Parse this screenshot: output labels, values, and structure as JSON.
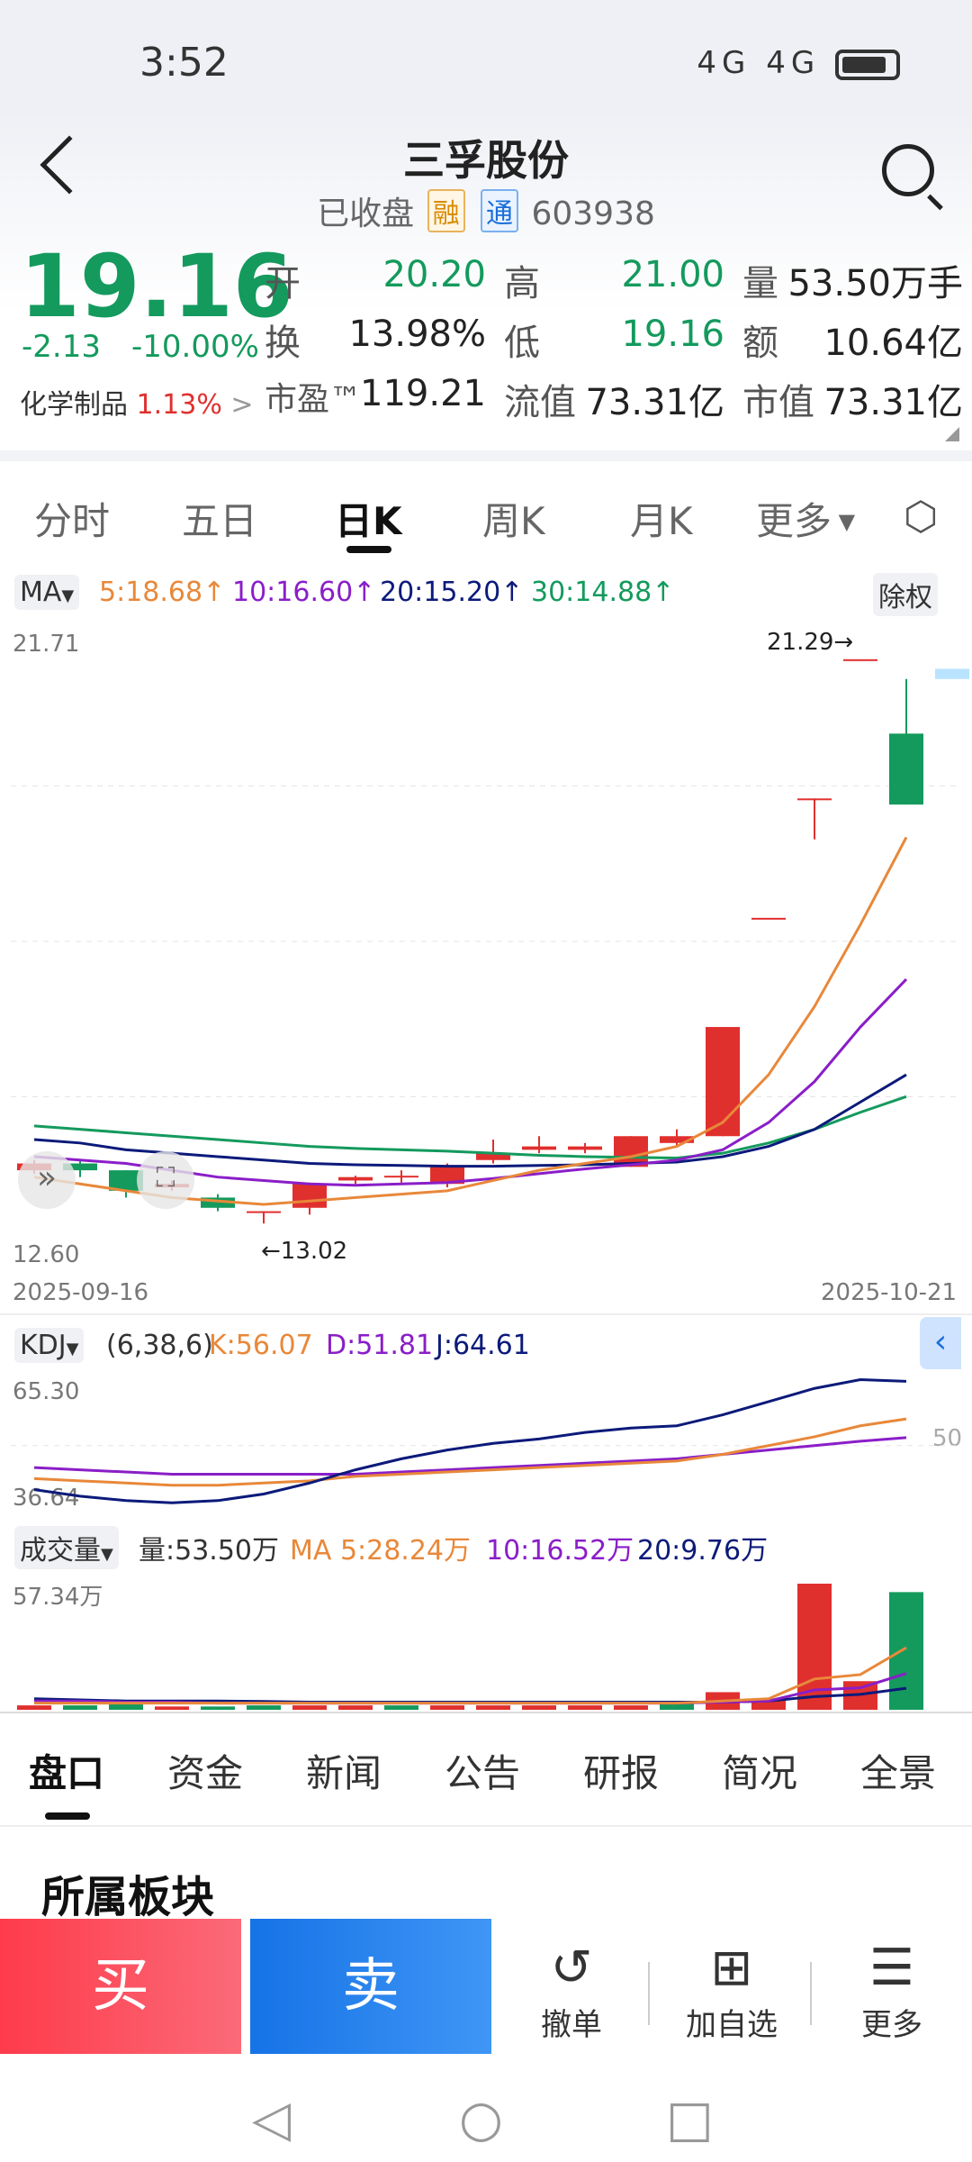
{
  "status": {
    "time": "3:52",
    "network": "4G 4G"
  },
  "header": {
    "name": "三孚股份",
    "state": "已收盘",
    "tag_rong": "融",
    "tag_tong": "通",
    "code": "603938"
  },
  "quote": {
    "price": "19.16",
    "change": "-2.13",
    "change_pct": "-10.00%",
    "sector_name": "化学制品",
    "sector_pct": "1.13%",
    "open_label": "开",
    "open": "20.20",
    "high_label": "高",
    "high": "21.00",
    "vol_label": "量",
    "vol": "53.50万手",
    "turnover_label": "换",
    "turnover": "13.98%",
    "low_label": "低",
    "low": "19.16",
    "amount_label": "额",
    "amount": "10.64亿",
    "pe_label": "市盈™",
    "pe": "119.21",
    "float_label": "流值",
    "float_cap": "73.31亿",
    "mcap_label": "市值",
    "mcap": "73.31亿"
  },
  "ktabs": [
    "分时",
    "五日",
    "日K",
    "周K",
    "月K",
    "更多"
  ],
  "ma": {
    "label": "MA",
    "ma5": "5:18.68↑",
    "ma10": "10:16.60↑",
    "ma20": "20:15.20↑",
    "ma30": "30:14.88↑",
    "adjust": "除权"
  },
  "chart_axis": {
    "y_top": "21.71",
    "y_bottom": "12.60",
    "max_note": "21.29→",
    "min_note": "←13.02",
    "date_start": "2025-09-16",
    "date_end": "2025-10-21"
  },
  "kdj": {
    "label": "KDJ",
    "params": "(6,38,6)",
    "k": "K:56.07",
    "d": "D:51.81",
    "j": "J:64.61",
    "y_top": "65.30",
    "y_bottom": "36.64",
    "mid": "50"
  },
  "volume": {
    "label": "成交量",
    "vol": "量:53.50万",
    "ma5": "MA 5:28.24万",
    "ma10": "10:16.52万",
    "ma20": "20:9.76万",
    "y_top": "57.34万"
  },
  "chart_data": {
    "type": "candlestick",
    "x_range": [
      "2025-09-16",
      "2025-10-21"
    ],
    "y_range": [
      12.6,
      21.71
    ],
    "candles": [
      {
        "o": 13.8,
        "c": 13.9,
        "h": 13.95,
        "l": 13.75
      },
      {
        "o": 13.9,
        "c": 13.8,
        "h": 13.95,
        "l": 13.7
      },
      {
        "o": 13.8,
        "c": 13.5,
        "h": 13.8,
        "l": 13.4
      },
      {
        "o": 13.55,
        "c": 13.6,
        "h": 13.65,
        "l": 13.5
      },
      {
        "o": 13.4,
        "c": 13.25,
        "h": 13.45,
        "l": 13.2
      },
      {
        "o": 13.2,
        "c": 13.2,
        "h": 13.2,
        "l": 13.02
      },
      {
        "o": 13.25,
        "c": 13.6,
        "h": 13.62,
        "l": 13.15
      },
      {
        "o": 13.65,
        "c": 13.7,
        "h": 13.72,
        "l": 13.6
      },
      {
        "o": 13.7,
        "c": 13.72,
        "h": 13.8,
        "l": 13.62
      },
      {
        "o": 13.6,
        "c": 13.85,
        "h": 13.9,
        "l": 13.55
      },
      {
        "o": 13.95,
        "c": 14.05,
        "h": 14.25,
        "l": 13.9
      },
      {
        "o": 14.1,
        "c": 14.15,
        "h": 14.3,
        "l": 14.05
      },
      {
        "o": 14.1,
        "c": 14.15,
        "h": 14.2,
        "l": 14.05
      },
      {
        "o": 13.85,
        "c": 14.3,
        "h": 14.3,
        "l": 13.85
      },
      {
        "o": 14.2,
        "c": 14.3,
        "h": 14.4,
        "l": 14.15
      },
      {
        "o": 14.3,
        "c": 15.9,
        "h": 15.9,
        "l": 14.3
      },
      {
        "o": 17.5,
        "c": 17.5,
        "h": 17.5,
        "l": 17.5
      },
      {
        "o": 19.25,
        "c": 19.25,
        "h": 19.25,
        "l": 18.65
      },
      {
        "o": 21.29,
        "c": 21.29,
        "h": 21.29,
        "l": 21.29
      },
      {
        "o": 20.2,
        "c": 19.16,
        "h": 21.0,
        "l": 19.16
      },
      {
        "o": 21.0,
        "c": 21.15,
        "h": 21.15,
        "l": 21.0,
        "pending": true
      }
    ],
    "ma5": [
      13.7,
      13.6,
      13.5,
      13.4,
      13.35,
      13.3,
      13.35,
      13.4,
      13.45,
      13.5,
      13.65,
      13.8,
      13.9,
      14.0,
      14.15,
      14.5,
      15.2,
      16.2,
      17.4,
      18.68
    ],
    "ma10": [
      14.0,
      13.95,
      13.9,
      13.8,
      13.7,
      13.65,
      13.6,
      13.58,
      13.6,
      13.62,
      13.68,
      13.75,
      13.82,
      13.88,
      13.95,
      14.1,
      14.5,
      15.1,
      15.9,
      16.6
    ],
    "ma20": [
      14.25,
      14.2,
      14.1,
      14.05,
      14.0,
      13.95,
      13.9,
      13.88,
      13.87,
      13.86,
      13.86,
      13.87,
      13.88,
      13.9,
      13.92,
      14.0,
      14.15,
      14.4,
      14.8,
      15.2
    ],
    "ma30": [
      14.45,
      14.4,
      14.35,
      14.3,
      14.25,
      14.2,
      14.15,
      14.12,
      14.1,
      14.08,
      14.05,
      14.02,
      14.0,
      13.99,
      13.98,
      14.05,
      14.2,
      14.4,
      14.65,
      14.88
    ],
    "kdj_range": [
      36.64,
      65.3
    ],
    "kdj_k": [
      42.5,
      42.0,
      41.5,
      41.0,
      41.0,
      41.5,
      42.0,
      43.0,
      43.5,
      44.0,
      44.5,
      45.0,
      45.5,
      46.0,
      46.5,
      48.0,
      50.0,
      52.0,
      54.5,
      56.07
    ],
    "kdj_d": [
      45.0,
      44.5,
      44.0,
      43.5,
      43.5,
      43.5,
      43.5,
      43.5,
      44.0,
      44.5,
      45.0,
      45.5,
      46.0,
      46.5,
      47.0,
      48.0,
      49.0,
      50.0,
      51.0,
      51.81
    ],
    "kdj_j": [
      40.0,
      38.5,
      37.5,
      37.0,
      37.5,
      39.0,
      41.5,
      44.5,
      47.0,
      49.0,
      50.5,
      51.5,
      53.0,
      54.0,
      54.5,
      57.0,
      60.0,
      63.0,
      65.0,
      64.61
    ],
    "volume_range": [
      0,
      57.34
    ],
    "volume": [
      2,
      2,
      3,
      1.5,
      1.5,
      2,
      2,
      2,
      2,
      2,
      2,
      2,
      2,
      2,
      3,
      8,
      5,
      57.34,
      13,
      53.5
    ],
    "vol_up": [
      true,
      false,
      false,
      true,
      false,
      false,
      true,
      true,
      false,
      true,
      true,
      true,
      true,
      true,
      false,
      true,
      true,
      true,
      true,
      false
    ],
    "vol_ma5": [
      3,
      3,
      3,
      3,
      3,
      3,
      3,
      3,
      3,
      3,
      3,
      3,
      3,
      3,
      3,
      4,
      5,
      14,
      16,
      28.24
    ],
    "vol_ma10": [
      4,
      4,
      3.5,
      3.5,
      3,
      3,
      3,
      3,
      3,
      3,
      3,
      3,
      3,
      3,
      3,
      3.5,
      4,
      9,
      10,
      16.52
    ],
    "vol_ma20": [
      5,
      4.5,
      4,
      4,
      4,
      3.8,
      3.5,
      3.5,
      3.5,
      3.5,
      3.5,
      3.5,
      3.5,
      3.5,
      3.5,
      3.5,
      4,
      6,
      7,
      9.76
    ]
  },
  "btabs": [
    "盘口",
    "资金",
    "新闻",
    "公告",
    "研报",
    "简况",
    "全景"
  ],
  "section_title": "所属板块",
  "bottom": {
    "buy": "买",
    "sell": "卖",
    "cancel": "撤单",
    "watch": "加自选",
    "more": "更多"
  },
  "colors": {
    "up": "#e0302e",
    "down": "#149a5d",
    "ma5": "#e8883a",
    "ma10": "#8a1ec8",
    "ma20": "#0c1a7a",
    "ma30": "#149a5d"
  }
}
